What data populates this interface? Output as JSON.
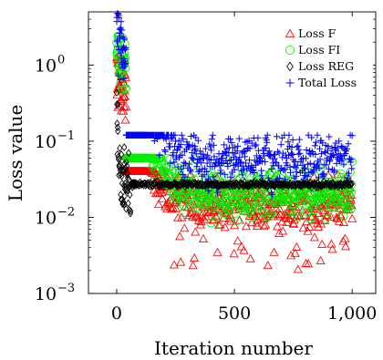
{
  "chart_data": {
    "type": "scatter",
    "title": "",
    "xlabel": "Iteration number",
    "ylabel": "Loss value",
    "x_scale": "linear",
    "y_scale": "log",
    "xlim": [
      -120,
      1100
    ],
    "ylim": [
      0.001,
      5
    ],
    "xticks": [
      0,
      500,
      1000
    ],
    "xtick_labels": [
      "0",
      "500",
      "1,000"
    ],
    "yticks": [
      0.001,
      0.01,
      0.1,
      1
    ],
    "ytick_labels": [
      {
        "base": "10",
        "exp": "−3"
      },
      {
        "base": "10",
        "exp": "−2"
      },
      {
        "base": "10",
        "exp": "−1"
      },
      {
        "base": "10",
        "exp": "0"
      }
    ],
    "grid": false,
    "legend_position": "top-right",
    "iterations": [
      0,
      1000
    ],
    "series": [
      {
        "name": "Loss F",
        "marker": "triangle",
        "color": "#ff0000",
        "start": 0.8,
        "plateau": 0.015,
        "tau": 45,
        "low": 0.002,
        "high": 0.04
      },
      {
        "name": "Loss FI",
        "marker": "circle",
        "color": "#00ee00",
        "start": 1.9,
        "plateau": 0.02,
        "tau": 45,
        "low": 0.008,
        "high": 0.06
      },
      {
        "name": "Loss REG",
        "marker": "diamond",
        "color": "#000000",
        "start": 0.3,
        "plateau": 0.027,
        "tau": 6,
        "low": 0.006,
        "high": 0.07
      },
      {
        "name": "Total Loss",
        "marker": "plus",
        "color": "#0000ff",
        "start": 2.4,
        "plateau": 0.055,
        "tau": 55,
        "low": 0.02,
        "high": 0.12
      }
    ]
  }
}
